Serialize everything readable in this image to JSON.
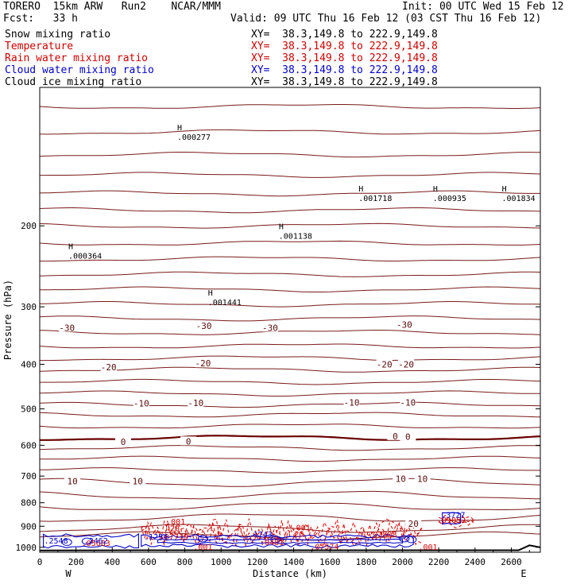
{
  "header": {
    "model": "TORERO  15km ARW   Run2    NCAR/MMM",
    "init": "Init: 00 UTC Wed 15 Feb 12",
    "fcst": "Fcst:   33 h",
    "valid": "Valid: 09 UTC Thu 16 Feb 12 (03 CST Thu 16 Feb 12)"
  },
  "legend": [
    {
      "label": "Snow mixing ratio",
      "xy": "XY=  38.3,149.8 to 222.9,149.8",
      "label_color": "#000000",
      "xy_color": "#000000"
    },
    {
      "label": "Temperature",
      "xy": "XY=  38.3,149.8 to 222.9,149.8",
      "label_color": "#cc0000",
      "xy_color": "#cc0000"
    },
    {
      "label": "Rain water mixing ratio",
      "xy": "XY=  38.3,149.8 to 222.9,149.8",
      "label_color": "#cc0000",
      "xy_color": "#cc0000"
    },
    {
      "label": "Cloud water mixing ratio",
      "xy": "XY=  38.3,149.8 to 222.9,149.8",
      "label_color": "#0000cc",
      "xy_color": "#0000cc"
    },
    {
      "label": "Cloud ice mixing ratio",
      "xy": "XY=  38.3,149.8 to 222.9,149.8",
      "label_color": "#000000",
      "xy_color": "#000000"
    }
  ],
  "colors": {
    "temperature": "#7a1a1a",
    "zero_isotherm": "#6a0000",
    "rain": "#dd0000",
    "cloud_water": "#0000cc",
    "terrain": "#000000",
    "axes": "#000000"
  },
  "chart_data": {
    "type": "contour-cross-section",
    "xlabel": "Distance (km)",
    "ylabel": "Pressure (hPa)",
    "x_range": [
      0,
      2760
    ],
    "y_range": [
      1025,
      100
    ],
    "y_scale": "log",
    "x_ticks": [
      0,
      200,
      400,
      600,
      800,
      1000,
      1200,
      1400,
      1600,
      1800,
      2000,
      2200,
      2400,
      2600
    ],
    "y_ticks": [
      200,
      300,
      400,
      500,
      600,
      700,
      800,
      900,
      1000
    ],
    "end_labels": {
      "left": "W",
      "right": "E"
    },
    "isotherm_levels": [
      {
        "p": 110
      },
      {
        "p": 125
      },
      {
        "p": 140
      },
      {
        "p": 155
      },
      {
        "p": 170
      },
      {
        "p": 185
      },
      {
        "p": 200
      },
      {
        "p": 218
      },
      {
        "p": 236
      },
      {
        "p": 255
      },
      {
        "p": 275
      },
      {
        "p": 296
      },
      {
        "p": 318
      },
      {
        "p": 341,
        "label": "-30"
      },
      {
        "p": 365
      },
      {
        "p": 388
      },
      {
        "p": 411,
        "label": "-20"
      },
      {
        "p": 437
      },
      {
        "p": 463
      },
      {
        "p": 490,
        "label": "-10"
      },
      {
        "p": 515
      },
      {
        "p": 545
      },
      {
        "p": 578,
        "label": "0",
        "bold": true
      },
      {
        "p": 608
      },
      {
        "p": 642
      },
      {
        "p": 680
      },
      {
        "p": 723,
        "label": "10"
      },
      {
        "p": 770
      },
      {
        "p": 815
      },
      {
        "p": 862
      },
      {
        "p": 910,
        "label": "20"
      },
      {
        "p": 945
      }
    ],
    "isotherm_labels": [
      {
        "text": "-30",
        "x": 150,
        "p": 333
      },
      {
        "text": "-30",
        "x": 905,
        "p": 330
      },
      {
        "text": "-30",
        "x": 1270,
        "p": 333
      },
      {
        "text": "-30",
        "x": 2010,
        "p": 328
      },
      {
        "text": "-20",
        "x": 380,
        "p": 406
      },
      {
        "text": "-20",
        "x": 900,
        "p": 398
      },
      {
        "text": "-20",
        "x": 1900,
        "p": 400
      },
      {
        "text": "-20",
        "x": 2020,
        "p": 400
      },
      {
        "text": "-10",
        "x": 560,
        "p": 486
      },
      {
        "text": "-10",
        "x": 860,
        "p": 485
      },
      {
        "text": "-10",
        "x": 1720,
        "p": 484
      },
      {
        "text": "-10",
        "x": 2030,
        "p": 484
      },
      {
        "text": "0",
        "x": 460,
        "p": 590
      },
      {
        "text": "0",
        "x": 820,
        "p": 588
      },
      {
        "text": "0",
        "x": 1960,
        "p": 573
      },
      {
        "text": "0",
        "x": 2030,
        "p": 575
      },
      {
        "text": "10",
        "x": 180,
        "p": 718
      },
      {
        "text": "10",
        "x": 540,
        "p": 718
      },
      {
        "text": "10",
        "x": 1990,
        "p": 710
      },
      {
        "text": "10",
        "x": 2110,
        "p": 710
      },
      {
        "text": "20",
        "x": 2060,
        "p": 888
      }
    ],
    "snow_maxima": [
      {
        "text": ".000277",
        "x": 850,
        "p": 128
      },
      {
        "text": ".001718",
        "x": 1850,
        "p": 174
      },
      {
        "text": ".000935",
        "x": 2260,
        "p": 174
      },
      {
        "text": ".001834",
        "x": 2640,
        "p": 174
      },
      {
        "text": ".001138",
        "x": 1410,
        "p": 210
      },
      {
        "text": ".000364",
        "x": 250,
        "p": 232
      },
      {
        "text": ".001441",
        "x": 1020,
        "p": 293
      }
    ],
    "rain_labels": [
      {
        "text": ".001",
        "x": 750,
        "p": 892
      },
      {
        "text": "20",
        "x": 745,
        "p": 922
      },
      {
        "text": ".001",
        "x": 1440,
        "p": 918
      },
      {
        "text": "20",
        "x": 1430,
        "p": 948
      },
      {
        "text": ".001",
        "x": 900,
        "p": 1012
      },
      {
        "text": ".001",
        "x": 2140,
        "p": 1013
      },
      {
        "text": ".0481",
        "x": 1280,
        "p": 988
      },
      {
        "text": ".07574",
        "x": 1570,
        "p": 1010
      },
      {
        "text": ".05683",
        "x": 310,
        "p": 992
      },
      {
        "text": ".01052",
        "x": 2270,
        "p": 884
      },
      {
        "text": ".03808",
        "x": 1890,
        "p": 950
      },
      {
        "text": ".07719",
        "x": 740,
        "p": 962
      }
    ],
    "cloud_water_labels": [
      {
        "text": ".2548",
        "x": 90,
        "p": 982
      },
      {
        "text": ".2462",
        "x": 310,
        "p": 982
      },
      {
        "text": ".1254",
        "x": 640,
        "p": 962
      },
      {
        "text": "1743",
        "x": 1230,
        "p": 950
      },
      {
        "text": ".3727",
        "x": 2280,
        "p": 862
      }
    ],
    "terrain_profile": [
      [
        0,
        1016
      ],
      [
        500,
        1015
      ],
      [
        1000,
        1015
      ],
      [
        1500,
        1015
      ],
      [
        2000,
        1015
      ],
      [
        2500,
        1015
      ],
      [
        2640,
        1015
      ],
      [
        2700,
        990
      ],
      [
        2760,
        1000
      ]
    ]
  }
}
